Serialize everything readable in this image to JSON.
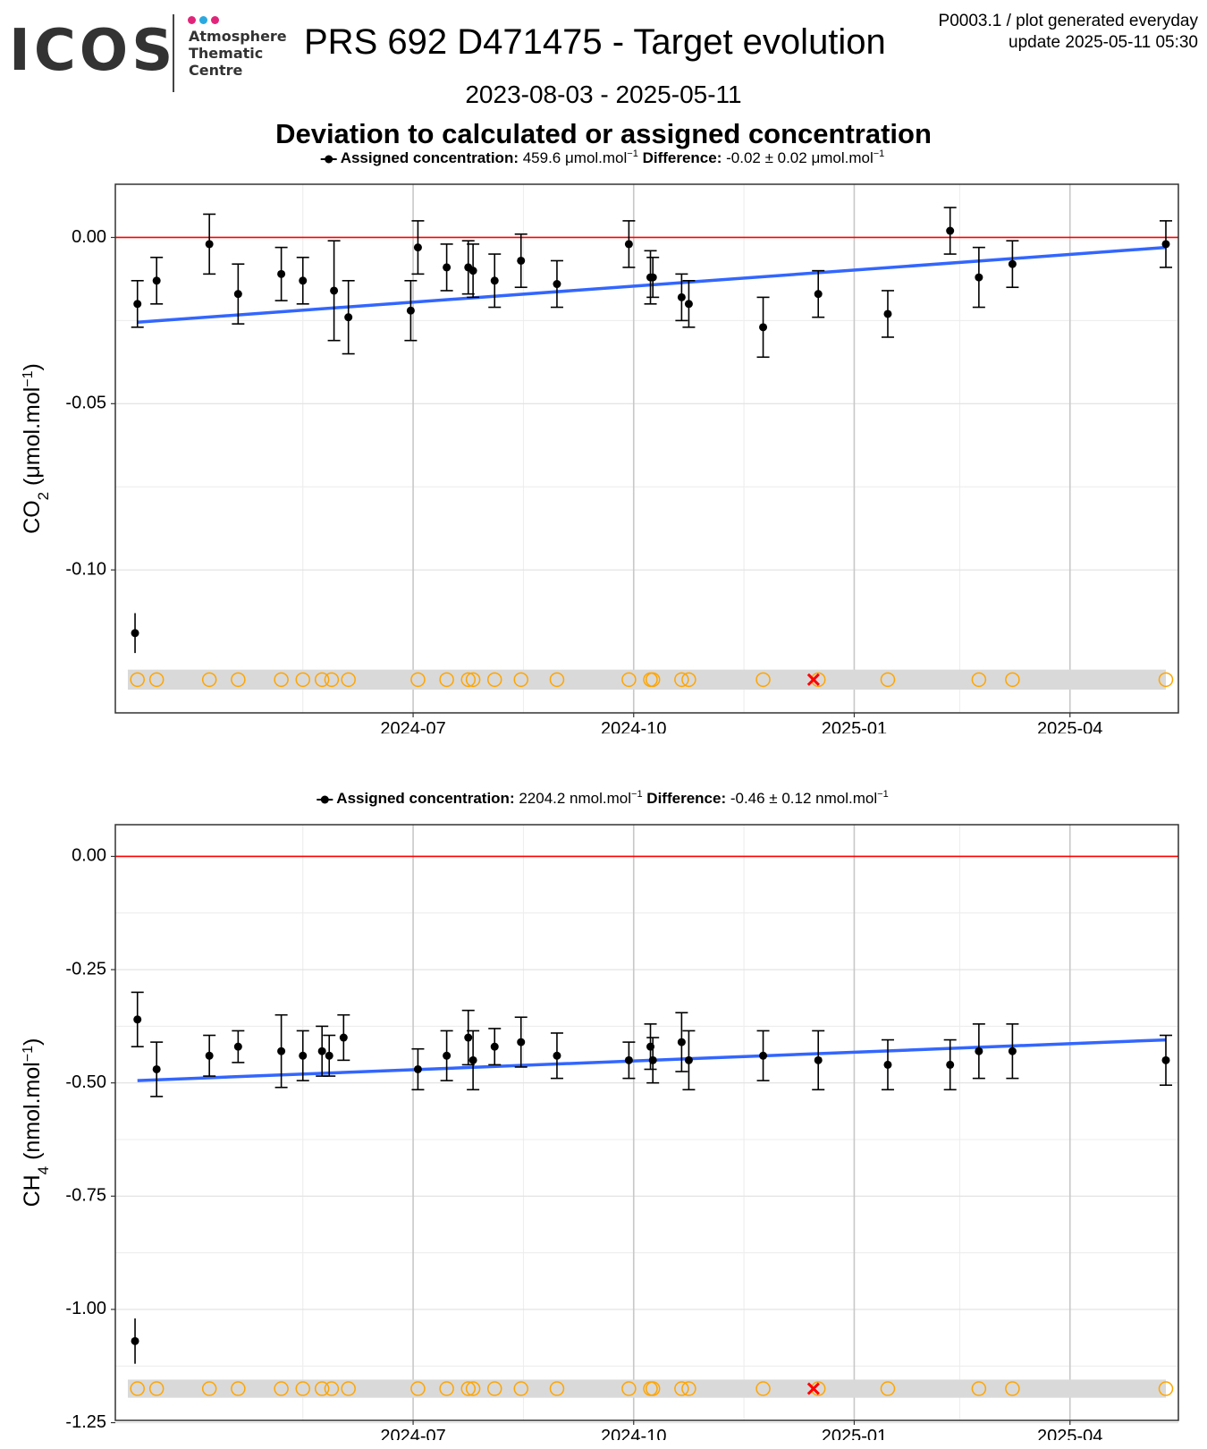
{
  "header": {
    "logo_text": "ICOS",
    "logo_subtitle": [
      "Atmosphere",
      "Thematic",
      "Centre"
    ],
    "logo_colors": [
      "#e0257a",
      "#2aa8e0",
      "#e0257a"
    ],
    "title": "PRS 692 D471475 - Target evolution",
    "meta_line1": "P0003.1 / plot generated everyday",
    "meta_line2": "update  2025-05-11 05:30",
    "date_range": "2023-08-03 - 2025-05-11",
    "subtitle": "Deviation to calculated or assigned concentration"
  },
  "colors": {
    "points": "#000000",
    "trend": "#3366ff",
    "zero_line": "#ff0000",
    "flag_open": "#ffa500",
    "flag_bad": "#ff0000",
    "band": "#d9d9d9"
  },
  "chart_data": [
    {
      "type": "scatter",
      "legend": {
        "label_bold": "Assigned concentration:",
        "value": "459.6 μmol.mol",
        "superscript": "−1",
        "diff_label": "Difference:",
        "diff_value": "-0.02 ± 0.02 μmol.mol",
        "diff_superscript": "−1"
      },
      "ylabel": "CO₂ (μmol.mol⁻¹)",
      "ylabel_main": "CO",
      "ylabel_sub": "2",
      "ylabel_unit": " (μmol.mol",
      "ylabel_sup": "−1",
      "ylim": [
        -0.143,
        0.016
      ],
      "yticks": [
        0.0,
        -0.05,
        -0.1
      ],
      "ytick_labels": [
        "0.00",
        "-0.05",
        "-0.10"
      ],
      "xlim": [
        "2024-03-04",
        "2025-05-11"
      ],
      "xticks": [
        "2024-07-01",
        "2024-10-01",
        "2025-01-01",
        "2025-04-01"
      ],
      "xtick_labels": [
        "2024-07",
        "2024-10",
        "2025-01",
        "2025-04"
      ],
      "flag_y": -0.133,
      "band": [
        -0.13,
        -0.136
      ],
      "trend": {
        "x": [
          "2024-03-08",
          "2025-05-11"
        ],
        "y": [
          -0.0255,
          -0.003
        ]
      },
      "points": [
        {
          "x": "2024-03-08",
          "y": -0.02,
          "err": 0.007
        },
        {
          "x": "2024-03-16",
          "y": -0.013,
          "err": 0.007
        },
        {
          "x": "2024-04-07",
          "y": -0.002,
          "err": 0.009
        },
        {
          "x": "2024-04-19",
          "y": -0.017,
          "err": 0.009
        },
        {
          "x": "2024-05-07",
          "y": -0.011,
          "err": 0.008
        },
        {
          "x": "2024-05-16",
          "y": -0.013,
          "err": 0.007
        },
        {
          "x": "2024-05-29",
          "y": -0.016,
          "err": 0.015
        },
        {
          "x": "2024-06-30",
          "y": -0.022,
          "err": 0.009
        },
        {
          "x": "2024-06-04",
          "y": -0.024,
          "err": 0.011
        },
        {
          "x": "2024-07-03",
          "y": -0.003,
          "err": 0.008
        },
        {
          "x": "2024-07-15",
          "y": -0.009,
          "err": 0.007
        },
        {
          "x": "2024-07-24",
          "y": -0.009,
          "err": 0.008
        },
        {
          "x": "2024-07-26",
          "y": -0.01,
          "err": 0.008
        },
        {
          "x": "2024-08-04",
          "y": -0.013,
          "err": 0.008
        },
        {
          "x": "2024-08-15",
          "y": -0.007,
          "err": 0.008
        },
        {
          "x": "2024-08-30",
          "y": -0.014,
          "err": 0.007
        },
        {
          "x": "2024-09-29",
          "y": -0.002,
          "err": 0.007
        },
        {
          "x": "2024-10-08",
          "y": -0.012,
          "err": 0.008
        },
        {
          "x": "2024-10-09",
          "y": -0.012,
          "err": 0.006
        },
        {
          "x": "2024-10-21",
          "y": -0.018,
          "err": 0.007
        },
        {
          "x": "2024-10-24",
          "y": -0.02,
          "err": 0.007
        },
        {
          "x": "2024-11-24",
          "y": -0.027,
          "err": 0.009
        },
        {
          "x": "2024-12-17",
          "y": -0.017,
          "err": 0.007
        },
        {
          "x": "2025-01-15",
          "y": -0.023,
          "err": 0.007
        },
        {
          "x": "2025-02-10",
          "y": 0.002,
          "err": 0.007
        },
        {
          "x": "2025-02-22",
          "y": -0.012,
          "err": 0.009
        },
        {
          "x": "2025-03-08",
          "y": -0.008,
          "err": 0.007
        },
        {
          "x": "2025-05-11",
          "y": -0.002,
          "err": 0.007
        },
        {
          "x": "2024-03-07",
          "y": -0.119,
          "err": 0.006
        }
      ],
      "flags": [
        "2024-03-08",
        "2024-03-16",
        "2024-04-07",
        "2024-04-19",
        "2024-05-07",
        "2024-05-16",
        "2024-05-24",
        "2024-05-28",
        "2024-06-04",
        "2024-07-03",
        "2024-07-15",
        "2024-07-24",
        "2024-07-26",
        "2024-08-04",
        "2024-08-15",
        "2024-08-30",
        "2024-09-29",
        "2024-10-08",
        "2024-10-09",
        "2024-10-21",
        "2024-10-24",
        "2024-11-24",
        "2024-12-17",
        "2025-01-15",
        "2025-02-22",
        "2025-03-08",
        "2025-05-11"
      ],
      "bad_flags": [
        "2024-12-15"
      ]
    },
    {
      "type": "scatter",
      "legend": {
        "label_bold": "Assigned concentration:",
        "value": "2204.2 nmol.mol",
        "superscript": "−1",
        "diff_label": "Difference:",
        "diff_value": "-0.46 ± 0.12 nmol.mol",
        "diff_superscript": "−1"
      },
      "ylabel": "CH₄ (nmol.mol⁻¹)",
      "ylabel_main": "CH",
      "ylabel_sub": "4",
      "ylabel_unit": " (nmol.mol",
      "ylabel_sup": "−1",
      "ylim": [
        -1.245,
        0.07
      ],
      "yticks": [
        0.0,
        -0.25,
        -0.5,
        -0.75,
        -1.0,
        -1.25
      ],
      "ytick_labels": [
        "0.00",
        "-0.25",
        "-0.50",
        "-0.75",
        "-1.00",
        "-1.25"
      ],
      "xlim": [
        "2024-03-04",
        "2025-05-11"
      ],
      "xticks": [
        "2024-07-01",
        "2024-10-01",
        "2025-01-01",
        "2025-04-01"
      ],
      "xtick_labels": [
        "2024-07",
        "2024-10",
        "2025-01",
        "2025-04"
      ],
      "flag_y": -1.175,
      "band": [
        -1.155,
        -1.195
      ],
      "trend": {
        "x": [
          "2024-03-08",
          "2025-05-11"
        ],
        "y": [
          -0.495,
          -0.405
        ]
      },
      "points": [
        {
          "x": "2024-03-08",
          "y": -0.36,
          "err": 0.06
        },
        {
          "x": "2024-03-16",
          "y": -0.47,
          "err": 0.06
        },
        {
          "x": "2024-04-07",
          "y": -0.44,
          "err": 0.045
        },
        {
          "x": "2024-04-19",
          "y": -0.42,
          "err": 0.035
        },
        {
          "x": "2024-05-07",
          "y": -0.43,
          "err": 0.08
        },
        {
          "x": "2024-05-16",
          "y": -0.44,
          "err": 0.055
        },
        {
          "x": "2024-05-24",
          "y": -0.43,
          "err": 0.055
        },
        {
          "x": "2024-05-27",
          "y": -0.44,
          "err": 0.045
        },
        {
          "x": "2024-06-02",
          "y": -0.4,
          "err": 0.05
        },
        {
          "x": "2024-07-03",
          "y": -0.47,
          "err": 0.045
        },
        {
          "x": "2024-07-15",
          "y": -0.44,
          "err": 0.055
        },
        {
          "x": "2024-07-24",
          "y": -0.4,
          "err": 0.06
        },
        {
          "x": "2024-07-26",
          "y": -0.45,
          "err": 0.065
        },
        {
          "x": "2024-08-04",
          "y": -0.42,
          "err": 0.04
        },
        {
          "x": "2024-08-15",
          "y": -0.41,
          "err": 0.055
        },
        {
          "x": "2024-08-30",
          "y": -0.44,
          "err": 0.05
        },
        {
          "x": "2024-09-29",
          "y": -0.45,
          "err": 0.04
        },
        {
          "x": "2024-10-08",
          "y": -0.42,
          "err": 0.05
        },
        {
          "x": "2024-10-09",
          "y": -0.45,
          "err": 0.05
        },
        {
          "x": "2024-10-21",
          "y": -0.41,
          "err": 0.065
        },
        {
          "x": "2024-10-24",
          "y": -0.45,
          "err": 0.065
        },
        {
          "x": "2024-11-24",
          "y": -0.44,
          "err": 0.055
        },
        {
          "x": "2024-12-17",
          "y": -0.45,
          "err": 0.065
        },
        {
          "x": "2025-01-15",
          "y": -0.46,
          "err": 0.055
        },
        {
          "x": "2025-02-10",
          "y": -0.46,
          "err": 0.055
        },
        {
          "x": "2025-02-22",
          "y": -0.43,
          "err": 0.06
        },
        {
          "x": "2025-03-08",
          "y": -0.43,
          "err": 0.06
        },
        {
          "x": "2025-05-11",
          "y": -0.45,
          "err": 0.055
        },
        {
          "x": "2024-03-07",
          "y": -1.07,
          "err": 0.05
        }
      ],
      "flags": [
        "2024-03-08",
        "2024-03-16",
        "2024-04-07",
        "2024-04-19",
        "2024-05-07",
        "2024-05-16",
        "2024-05-24",
        "2024-05-28",
        "2024-06-04",
        "2024-07-03",
        "2024-07-15",
        "2024-07-24",
        "2024-07-26",
        "2024-08-04",
        "2024-08-15",
        "2024-08-30",
        "2024-09-29",
        "2024-10-08",
        "2024-10-09",
        "2024-10-21",
        "2024-10-24",
        "2024-11-24",
        "2024-12-17",
        "2025-01-15",
        "2025-02-22",
        "2025-03-08",
        "2025-05-11"
      ],
      "bad_flags": [
        "2024-12-15"
      ]
    }
  ]
}
